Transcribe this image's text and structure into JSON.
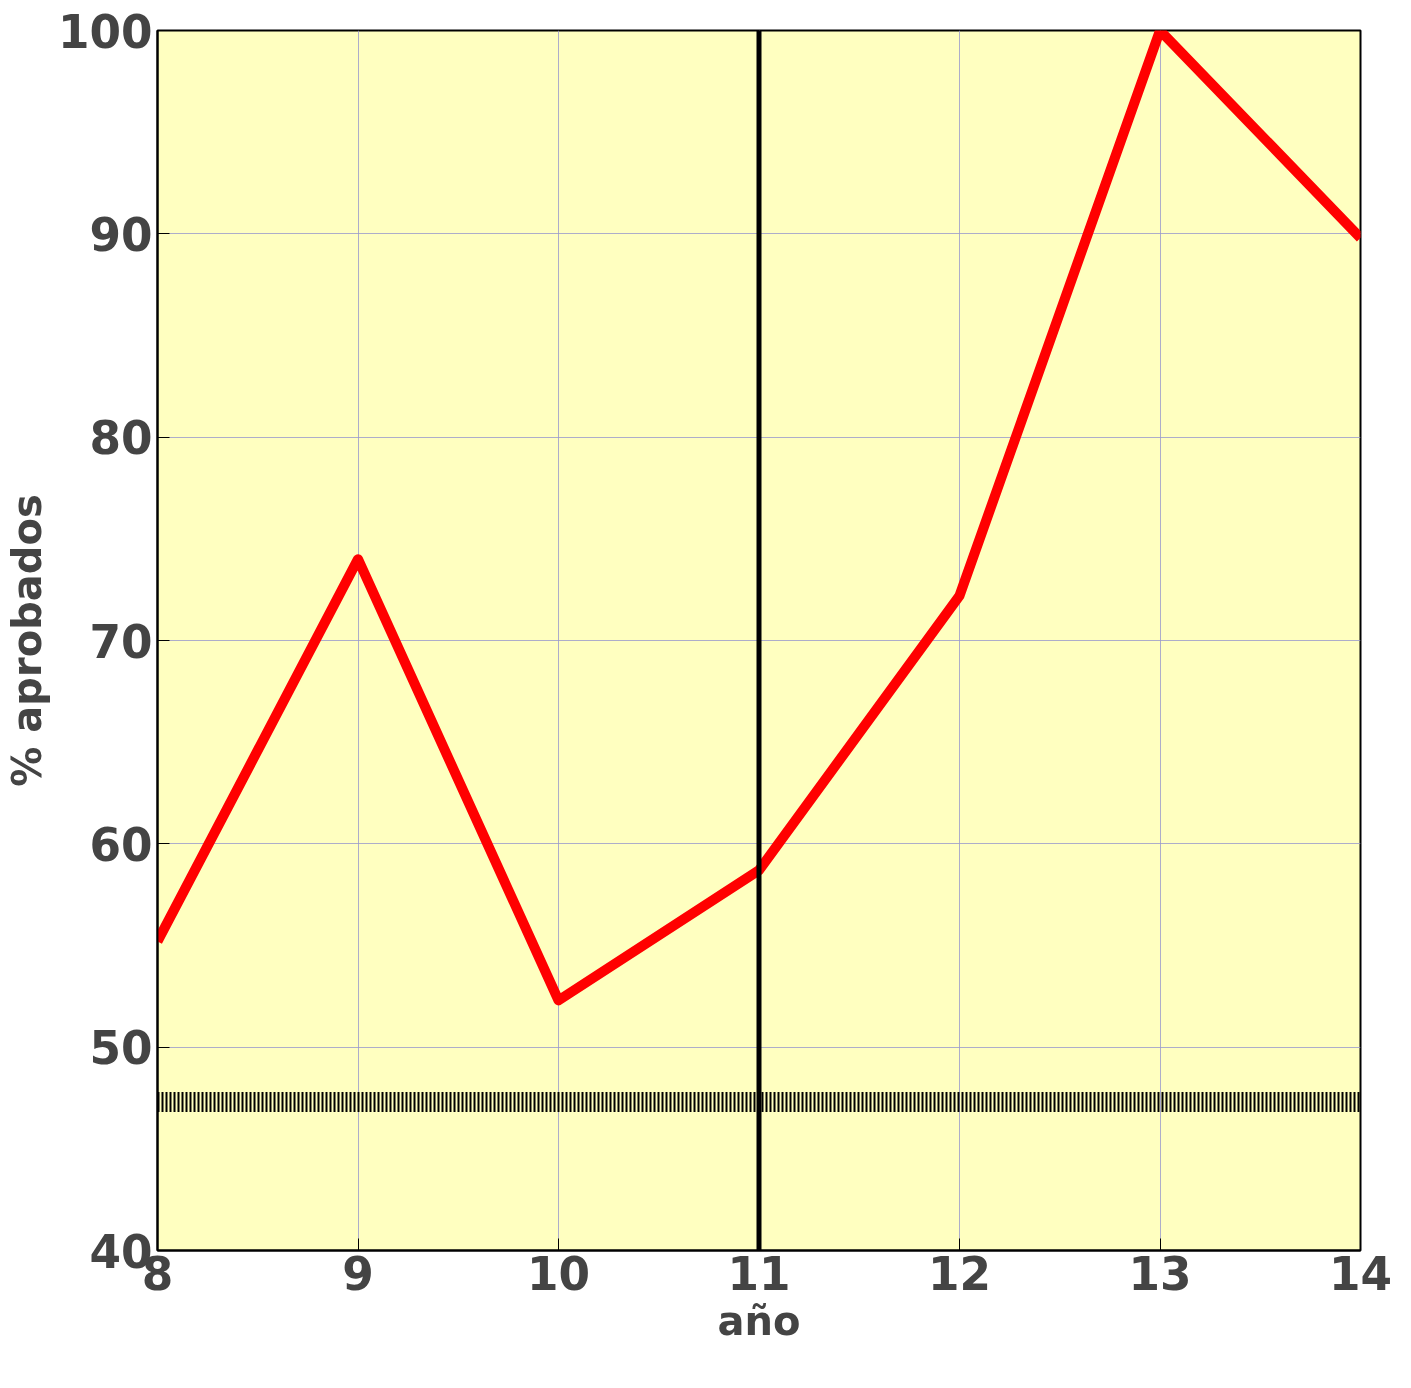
{
  "chart_data": {
    "type": "line",
    "xlabel": "año",
    "ylabel": "% aprobados",
    "x": [
      8,
      9,
      10,
      11,
      12,
      13,
      14
    ],
    "series": [
      {
        "color": "#ff0000",
        "values": [
          55.2,
          74,
          52.3,
          58.7,
          72.2,
          100,
          89.8
        ]
      }
    ],
    "xlim": [
      8,
      14
    ],
    "ylim": [
      40,
      100
    ],
    "xticks": [
      8,
      9,
      10,
      11,
      12,
      13,
      14
    ],
    "yticks": [
      40,
      50,
      60,
      70,
      80,
      90,
      100
    ],
    "grid": true,
    "marker": "none",
    "line_style": "solid",
    "ref_lines": [
      {
        "axis": "x",
        "value": 11,
        "color": "#000000",
        "line_style": "solid"
      },
      {
        "axis": "y",
        "value": 47.3,
        "color": "#000000",
        "line_style": "dotted"
      }
    ]
  }
}
